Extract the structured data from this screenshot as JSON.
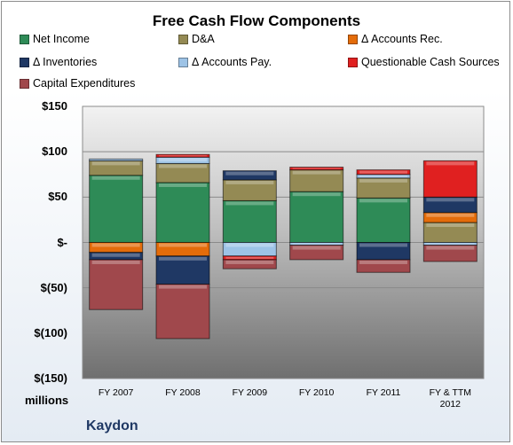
{
  "chart_data": {
    "type": "bar",
    "stacked": true,
    "title": "Free Cash Flow Components",
    "unit_label": "millions",
    "company": "Kaydon",
    "categories": [
      "FY 2007",
      "FY 2008",
      "FY 2009",
      "FY 2010",
      "FY 2011",
      "FY & TTM 2012"
    ],
    "ylim": [
      -150,
      150
    ],
    "yticks": [
      {
        "value": 150,
        "label": "$150"
      },
      {
        "value": 100,
        "label": "$100"
      },
      {
        "value": 50,
        "label": "$50"
      },
      {
        "value": 0,
        "label": "$-"
      },
      {
        "value": -50,
        "label": "$(50)"
      },
      {
        "value": -100,
        "label": "$(100)"
      },
      {
        "value": -150,
        "label": "$(150)"
      }
    ],
    "series": [
      {
        "name": "Net Income",
        "color": "#2e8b57",
        "values": [
          74,
          66,
          46,
          56,
          49,
          0
        ]
      },
      {
        "name": "D&A",
        "color": "#948a54",
        "values": [
          16,
          21,
          23,
          24,
          22,
          22
        ]
      },
      {
        "name": "Δ Accounts Rec.",
        "color": "#e46c0a",
        "values": [
          -11,
          -15,
          0,
          0,
          0,
          11
        ]
      },
      {
        "name": "Δ Inventories",
        "color": "#1f3864",
        "values": [
          -8,
          -31,
          10,
          0,
          -19,
          17
        ]
      },
      {
        "name": "Δ Accounts Pay.",
        "color": "#9dc3e6",
        "values": [
          2,
          7,
          -15,
          -3,
          4,
          -3
        ]
      },
      {
        "name": "Questionable Cash Sources",
        "color": "#e02020",
        "values": [
          0,
          3,
          -4,
          3,
          5,
          40
        ]
      },
      {
        "name": "Capital Expenditures",
        "color": "#a0484c",
        "values": [
          -55,
          -60,
          -10,
          -16,
          -14,
          -18
        ]
      }
    ],
    "legend_position": "top",
    "grid": true
  }
}
